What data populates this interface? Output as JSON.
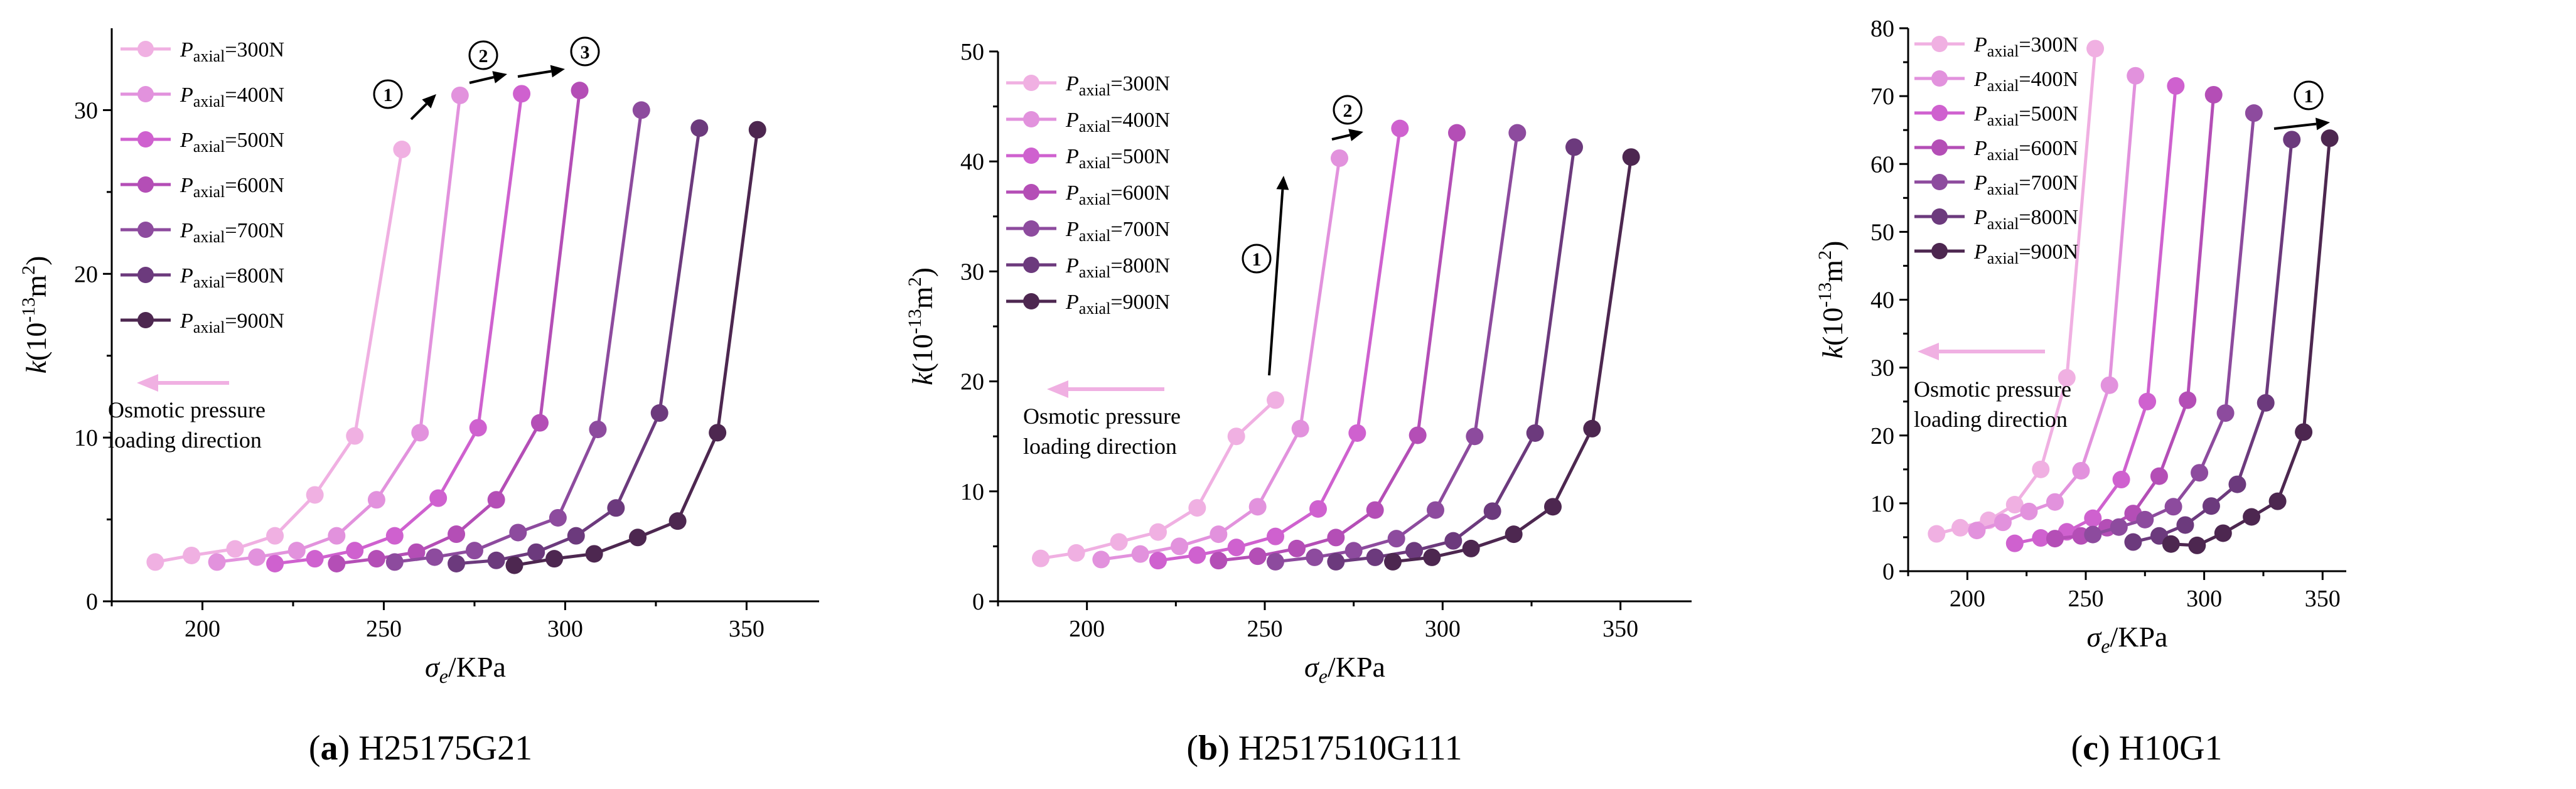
{
  "chart_data": [
    {
      "type": "line",
      "caption_letter": "a",
      "caption_name": "H25175G21",
      "xlabel_sym": "σ",
      "xlabel_sub": "e",
      "xlabel_unit": "/KPa",
      "ylabel_sym": "k",
      "ylabel_unit_a": "(10",
      "ylabel_exp": "-13",
      "ylabel_unit_b": "m",
      "ylabel_sq": "2",
      "ylabel_unit_c": ")",
      "xlim": [
        175,
        370
      ],
      "ylim": [
        0,
        35
      ],
      "xticks": [
        200,
        250,
        300,
        350
      ],
      "yticks": [
        0,
        10,
        20,
        30
      ],
      "annotation_line1": "Osmotic pressure",
      "annotation_line2": "loading direction",
      "markers": [
        "1",
        "2",
        "3"
      ],
      "series": [
        {
          "name": "=300N",
          "sub": "axial",
          "color": "#f0b0e2",
          "x": [
            187,
            197,
            209,
            220,
            231,
            242,
            255
          ],
          "y": [
            2.4,
            2.8,
            3.2,
            4.0,
            6.5,
            10.1,
            27.6
          ]
        },
        {
          "name": "=400N",
          "sub": "axial",
          "color": "#e292dd",
          "x": [
            204,
            215,
            226,
            237,
            248,
            260,
            271
          ],
          "y": [
            2.4,
            2.7,
            3.1,
            4.0,
            6.2,
            10.3,
            30.9
          ]
        },
        {
          "name": "=500N",
          "sub": "axial",
          "color": "#cf61cf",
          "x": [
            220,
            231,
            242,
            253,
            265,
            276,
            288
          ],
          "y": [
            2.3,
            2.6,
            3.1,
            4.0,
            6.3,
            10.6,
            31.0
          ]
        },
        {
          "name": "=600N",
          "sub": "axial",
          "color": "#b44eb6",
          "x": [
            237,
            248,
            259,
            270,
            281,
            293,
            304
          ],
          "y": [
            2.3,
            2.6,
            3.0,
            4.1,
            6.2,
            10.9,
            31.2
          ]
        },
        {
          "name": "=700N",
          "sub": "axial",
          "color": "#8d4b9e",
          "x": [
            253,
            264,
            275,
            287,
            298,
            309,
            321
          ],
          "y": [
            2.4,
            2.7,
            3.1,
            4.2,
            5.1,
            10.5,
            30.0
          ]
        },
        {
          "name": "=800N",
          "sub": "axial",
          "color": "#6c3a7d",
          "x": [
            270,
            281,
            292,
            303,
            314,
            326,
            337
          ],
          "y": [
            2.3,
            2.5,
            3.0,
            4.0,
            5.7,
            11.5,
            28.9
          ]
        },
        {
          "name": "=900N",
          "sub": "axial",
          "color": "#4d2750",
          "x": [
            286,
            297,
            308,
            320,
            331,
            342,
            353
          ],
          "y": [
            2.2,
            2.6,
            2.9,
            3.9,
            4.9,
            10.3,
            28.8
          ]
        }
      ]
    },
    {
      "type": "line",
      "caption_letter": "b",
      "caption_name": "H2517510G111",
      "xlabel_sym": "σ",
      "xlabel_sub": "e",
      "xlabel_unit": "/KPa",
      "ylabel_sym": "k",
      "ylabel_unit_a": "(10",
      "ylabel_exp": "-13",
      "ylabel_unit_b": "m",
      "ylabel_sq": "2",
      "ylabel_unit_c": ")",
      "xlim": [
        175,
        370
      ],
      "ylim": [
        0,
        50
      ],
      "xticks": [
        200,
        250,
        300,
        350
      ],
      "yticks": [
        0,
        10,
        20,
        30,
        40,
        50
      ],
      "annotation_line1": "Osmotic pressure",
      "annotation_line2": "loading direction",
      "markers": [
        "1",
        "2"
      ],
      "series": [
        {
          "name": "=300N",
          "sub": "axial",
          "color": "#f0b0e2",
          "x": [
            187,
            197,
            209,
            220,
            231,
            242,
            253
          ],
          "y": [
            3.9,
            4.4,
            5.4,
            6.3,
            8.5,
            15.0,
            18.3
          ]
        },
        {
          "name": "=400N",
          "sub": "axial",
          "color": "#e292dd",
          "x": [
            204,
            215,
            226,
            237,
            248,
            260,
            271
          ],
          "y": [
            3.8,
            4.3,
            5.0,
            6.1,
            8.6,
            15.7,
            40.3
          ]
        },
        {
          "name": "=500N",
          "sub": "axial",
          "color": "#cf61cf",
          "x": [
            220,
            231,
            242,
            253,
            265,
            276,
            288
          ],
          "y": [
            3.7,
            4.2,
            4.9,
            5.9,
            8.4,
            15.3,
            43.0
          ]
        },
        {
          "name": "=600N",
          "sub": "axial",
          "color": "#b44eb6",
          "x": [
            237,
            248,
            259,
            270,
            281,
            293,
            304
          ],
          "y": [
            3.7,
            4.1,
            4.8,
            5.8,
            8.3,
            15.1,
            42.6
          ]
        },
        {
          "name": "=700N",
          "sub": "axial",
          "color": "#8d4b9e",
          "x": [
            253,
            264,
            275,
            287,
            298,
            309,
            321
          ],
          "y": [
            3.6,
            4.0,
            4.6,
            5.7,
            8.3,
            15.0,
            42.6
          ]
        },
        {
          "name": "=800N",
          "sub": "axial",
          "color": "#6c3a7d",
          "x": [
            270,
            281,
            292,
            303,
            314,
            326,
            337
          ],
          "y": [
            3.6,
            4.0,
            4.6,
            5.5,
            8.2,
            15.3,
            41.3
          ]
        },
        {
          "name": "=900N",
          "sub": "axial",
          "color": "#4d2750",
          "x": [
            286,
            297,
            308,
            320,
            331,
            342,
            353
          ],
          "y": [
            3.6,
            4.0,
            4.8,
            6.1,
            8.6,
            15.7,
            40.4
          ]
        }
      ]
    },
    {
      "type": "line",
      "caption_letter": "c",
      "caption_name": "H10G1",
      "xlabel_sym": "σ",
      "xlabel_sub": "e",
      "xlabel_unit": "/KPa",
      "ylabel_sym": "k",
      "ylabel_unit_a": "(10",
      "ylabel_exp": "-13",
      "ylabel_unit_b": "m",
      "ylabel_sq": "2",
      "ylabel_unit_c": ")",
      "xlim": [
        175,
        360
      ],
      "ylim": [
        0,
        80
      ],
      "xticks": [
        200,
        250,
        300,
        350
      ],
      "yticks": [
        0,
        10,
        20,
        30,
        40,
        50,
        60,
        70,
        80
      ],
      "annotation_line1": "Osmotic pressure",
      "annotation_line2": "loading direction",
      "markers": [
        "1"
      ],
      "series": [
        {
          "name": "=300N",
          "sub": "axial",
          "color": "#f0b0e2",
          "x": [
            187,
            197,
            209,
            220,
            231,
            242,
            254
          ],
          "y": [
            5.5,
            6.4,
            7.5,
            9.8,
            15.0,
            28.5,
            77.0
          ]
        },
        {
          "name": "=400N",
          "sub": "axial",
          "color": "#e292dd",
          "x": [
            204,
            215,
            226,
            237,
            248,
            260,
            271
          ],
          "y": [
            6.0,
            7.2,
            8.8,
            10.2,
            14.8,
            27.4,
            73.0
          ]
        },
        {
          "name": "=500N",
          "sub": "axial",
          "color": "#cf61cf",
          "x": [
            220,
            231,
            242,
            253,
            265,
            276,
            288
          ],
          "y": [
            4.1,
            4.9,
            5.8,
            7.8,
            13.5,
            25.0,
            71.5
          ]
        },
        {
          "name": "=600N",
          "sub": "axial",
          "color": "#b44eb6",
          "x": [
            237,
            248,
            259,
            270,
            281,
            293,
            304
          ],
          "y": [
            4.8,
            5.2,
            6.4,
            8.5,
            14.0,
            25.2,
            70.2
          ]
        },
        {
          "name": "=700N",
          "sub": "axial",
          "color": "#8d4b9e",
          "x": [
            253,
            264,
            275,
            287,
            298,
            309,
            321
          ],
          "y": [
            5.4,
            6.5,
            7.6,
            9.5,
            14.5,
            23.3,
            67.5
          ]
        },
        {
          "name": "=800N",
          "sub": "axial",
          "color": "#6c3a7d",
          "x": [
            270,
            281,
            292,
            303,
            314,
            326,
            337
          ],
          "y": [
            4.3,
            5.2,
            6.8,
            9.6,
            12.8,
            24.8,
            63.6
          ]
        },
        {
          "name": "=900N",
          "sub": "axial",
          "color": "#4d2750",
          "x": [
            286,
            297,
            308,
            320,
            331,
            342,
            353
          ],
          "y": [
            4.0,
            3.8,
            5.6,
            8.0,
            10.3,
            20.5,
            63.8
          ]
        }
      ]
    }
  ]
}
